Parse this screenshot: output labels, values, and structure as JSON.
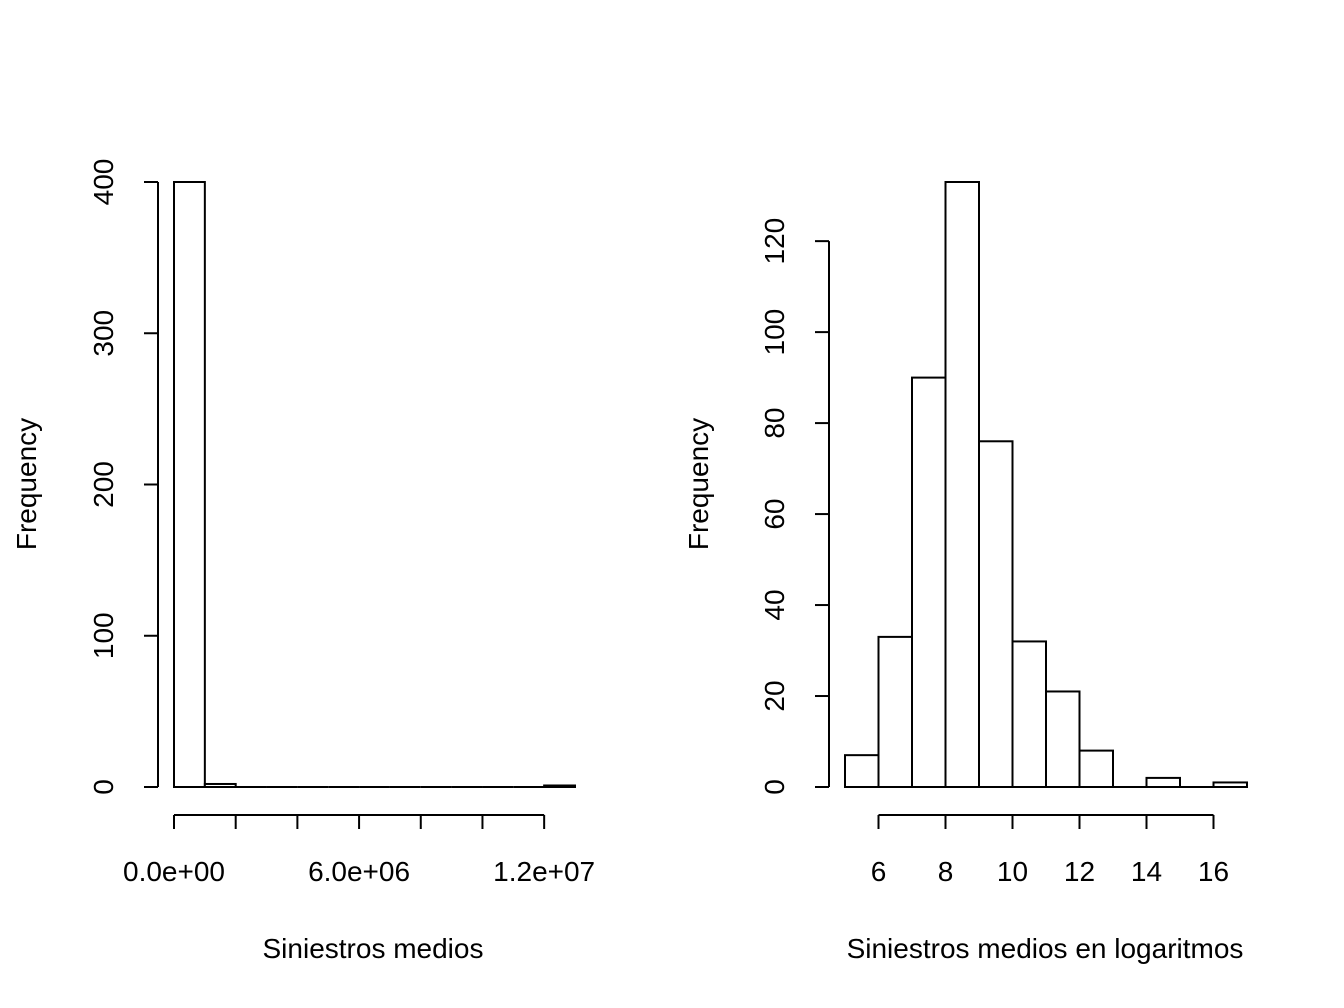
{
  "colors": {
    "background": "#ffffff",
    "bar_fill": "#ffffff",
    "bar_stroke": "#000000"
  },
  "chart_data": [
    {
      "type": "bar",
      "subtype": "histogram",
      "title": "",
      "xlabel": "Siniestros medios",
      "ylabel": "Frequency",
      "bin_edges": [
        0,
        1000000,
        2000000,
        3000000,
        4000000,
        5000000,
        6000000,
        7000000,
        8000000,
        9000000,
        10000000,
        11000000,
        12000000,
        13000000
      ],
      "values": [
        400,
        2,
        0,
        0,
        0,
        0,
        0,
        0,
        0,
        0,
        0,
        0,
        1
      ],
      "xlim": [
        0,
        13000000
      ],
      "ylim": [
        0,
        400
      ],
      "x_ticks": [
        0,
        2000000,
        4000000,
        6000000,
        8000000,
        10000000,
        12000000
      ],
      "x_tick_labels": [
        "0.0e+00",
        "",
        "",
        "6.0e+06",
        "",
        "",
        "1.2e+07"
      ],
      "y_ticks": [
        0,
        100,
        200,
        300,
        400
      ],
      "y_tick_labels": [
        "0",
        "100",
        "200",
        "300",
        "400"
      ],
      "grid": false,
      "legend": "none"
    },
    {
      "type": "bar",
      "subtype": "histogram",
      "title": "",
      "xlabel": "Siniestros medios en logaritmos",
      "ylabel": "Frequency",
      "bin_edges": [
        5,
        6,
        7,
        8,
        9,
        10,
        11,
        12,
        13,
        14,
        15,
        16,
        17
      ],
      "values": [
        7,
        33,
        90,
        133,
        76,
        32,
        21,
        8,
        0,
        2,
        0,
        1
      ],
      "xlim": [
        5,
        17
      ],
      "ylim": [
        0,
        133
      ],
      "x_ticks": [
        6,
        8,
        10,
        12,
        14,
        16
      ],
      "x_tick_labels": [
        "6",
        "8",
        "10",
        "12",
        "14",
        "16"
      ],
      "y_ticks": [
        0,
        20,
        40,
        60,
        80,
        100,
        120
      ],
      "y_tick_labels": [
        "0",
        "20",
        "40",
        "60",
        "80",
        "100",
        "120"
      ],
      "grid": false,
      "legend": "none"
    }
  ]
}
